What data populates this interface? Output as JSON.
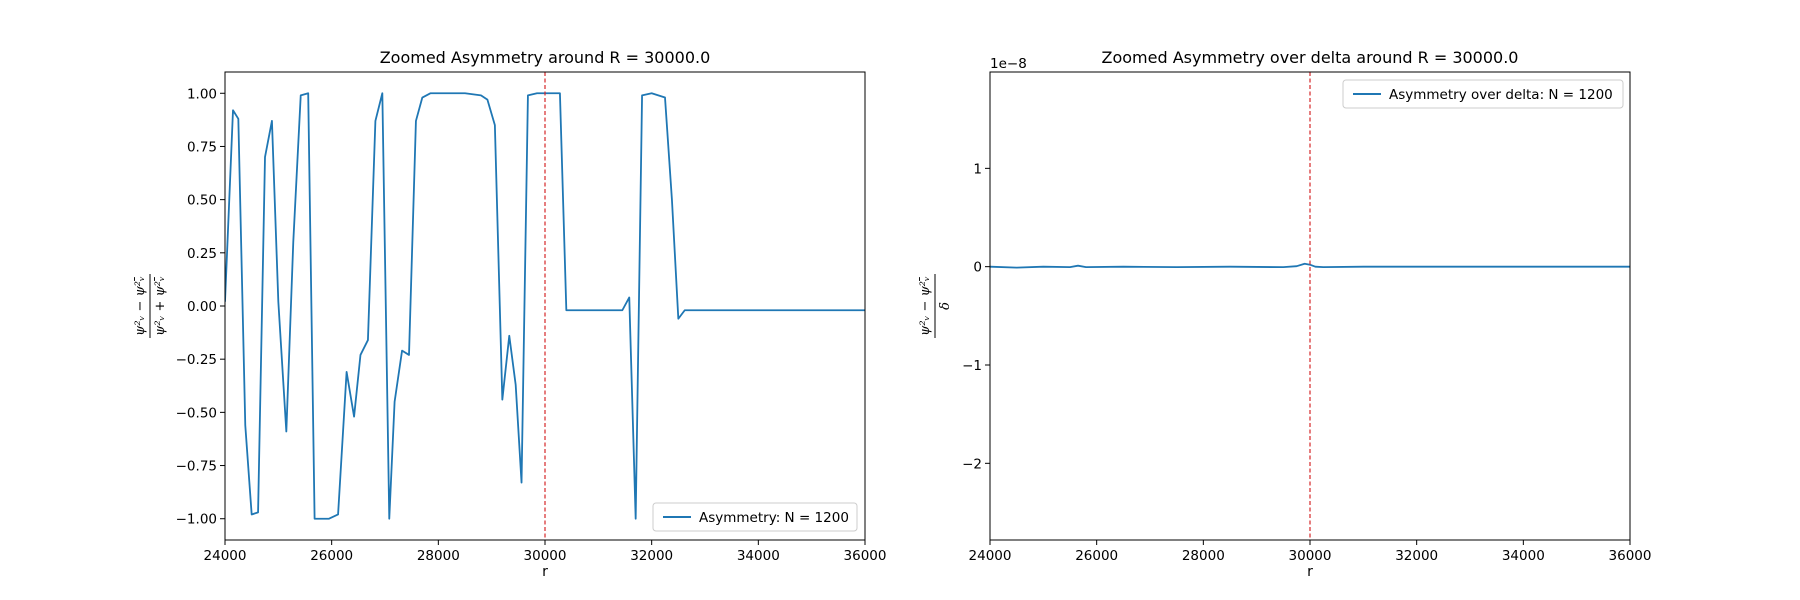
{
  "chart_data": [
    {
      "type": "line",
      "title": "Zoomed Asymmetry around R = 30000.0",
      "xlabel": "r",
      "ylabel": {
        "numerator": "ψ²ᵥ − ψ²ᵥ̄",
        "denominator": "ψ²ᵥ + ψ²ᵥ̄"
      },
      "xlim": [
        24000,
        36000
      ],
      "ylim": [
        -1.1,
        1.1
      ],
      "xticks": [
        "24000",
        "26000",
        "28000",
        "30000",
        "32000",
        "34000",
        "36000"
      ],
      "xtick_values": [
        24000,
        26000,
        28000,
        30000,
        32000,
        34000,
        36000
      ],
      "yticks": [
        "−1.00",
        "−0.75",
        "−0.50",
        "−0.25",
        "0.00",
        "0.25",
        "0.50",
        "0.75",
        "1.00"
      ],
      "ytick_values": [
        -1.0,
        -0.75,
        -0.5,
        -0.25,
        0.0,
        0.25,
        0.5,
        0.75,
        1.0
      ],
      "grid": false,
      "legend_position": "lower-right",
      "vline": {
        "x": 30000,
        "color": "#d62728",
        "style": "dashed"
      },
      "series": [
        {
          "name": "Asymmetry: N = 1200",
          "color": "#1f77b4",
          "x": [
            24000,
            24150,
            24250,
            24380,
            24500,
            24620,
            24750,
            24880,
            25000,
            25150,
            25280,
            25420,
            25560,
            25680,
            25800,
            25950,
            26120,
            26280,
            26420,
            26540,
            26680,
            26820,
            26950,
            27080,
            27180,
            27320,
            27450,
            27580,
            27700,
            27850,
            28000,
            28500,
            28800,
            28920,
            29060,
            29200,
            29330,
            29450,
            29560,
            29680,
            29850,
            30000,
            30150,
            30280,
            30400,
            31000,
            31300,
            31450,
            31580,
            31700,
            31820,
            32000,
            32250,
            32380,
            32500,
            32620,
            32750,
            36000
          ],
          "y": [
            0.02,
            0.92,
            0.88,
            -0.56,
            -0.98,
            -0.97,
            0.7,
            0.87,
            0.02,
            -0.59,
            0.3,
            0.99,
            1.0,
            -1.0,
            -1.0,
            -1.0,
            -0.98,
            -0.31,
            -0.52,
            -0.23,
            -0.16,
            0.87,
            1.0,
            -1.0,
            -0.45,
            -0.21,
            -0.23,
            0.87,
            0.98,
            1.0,
            1.0,
            1.0,
            0.99,
            0.97,
            0.85,
            -0.44,
            -0.14,
            -0.37,
            -0.83,
            0.99,
            1.0,
            1.0,
            1.0,
            1.0,
            -0.02,
            -0.02,
            -0.02,
            -0.02,
            0.04,
            -1.0,
            0.99,
            1.0,
            0.98,
            0.5,
            -0.06,
            -0.02,
            -0.02,
            -0.02
          ]
        }
      ]
    },
    {
      "type": "line",
      "title": "Zoomed Asymmetry over delta around R = 30000.0",
      "xlabel": "r",
      "ylabel": {
        "numerator": "ψ²ᵥ − ψ²ᵥ̄",
        "denominator": "δ"
      },
      "offset_text": "1e−8",
      "xlim": [
        24000,
        36000
      ],
      "ylim": [
        -2.78,
        1.98
      ],
      "xticks": [
        "24000",
        "26000",
        "28000",
        "30000",
        "32000",
        "34000",
        "36000"
      ],
      "xtick_values": [
        24000,
        26000,
        28000,
        30000,
        32000,
        34000,
        36000
      ],
      "yticks": [
        "−2",
        "−1",
        "0",
        "1"
      ],
      "ytick_values": [
        -2,
        -1,
        0,
        1
      ],
      "grid": false,
      "legend_position": "upper-right",
      "vline": {
        "x": 30000,
        "color": "#d62728",
        "style": "dashed"
      },
      "series": [
        {
          "name": "Asymmetry over delta: N = 1200",
          "color": "#1f77b4",
          "x": [
            24000,
            24500,
            25000,
            25500,
            25650,
            25800,
            26500,
            27500,
            28500,
            29500,
            29750,
            29900,
            30000,
            30100,
            30250,
            31000,
            33000,
            36000
          ],
          "y": [
            0.0,
            -0.01,
            0.0,
            -0.005,
            0.01,
            -0.005,
            0.0,
            -0.005,
            0.0,
            -0.005,
            0.005,
            0.03,
            0.02,
            0.0,
            -0.005,
            0.0,
            0.0,
            0.0
          ]
        }
      ]
    }
  ]
}
